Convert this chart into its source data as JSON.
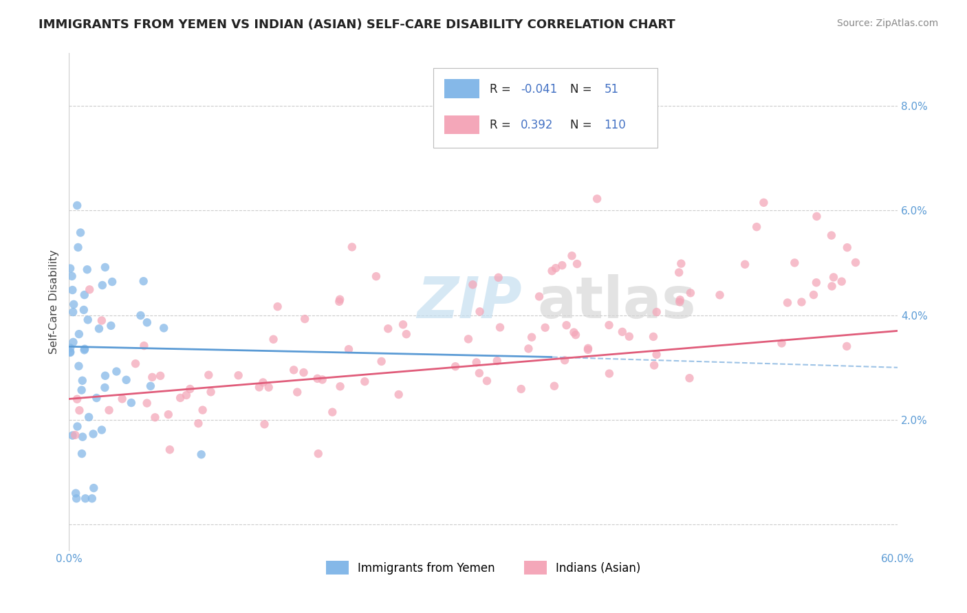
{
  "title": "IMMIGRANTS FROM YEMEN VS INDIAN (ASIAN) SELF-CARE DISABILITY CORRELATION CHART",
  "source": "Source: ZipAtlas.com",
  "ylabel": "Self-Care Disability",
  "legend_label1": "Immigrants from Yemen",
  "legend_label2": "Indians (Asian)",
  "r1": -0.041,
  "n1": 51,
  "r2": 0.392,
  "n2": 110,
  "color1": "#85b8e8",
  "color2": "#f4a7b9",
  "line_color1": "#5b9bd5",
  "line_color2": "#e05c7a",
  "dash_color": "#9dc3e6",
  "background": "#ffffff",
  "xlim": [
    0.0,
    0.6
  ],
  "ylim": [
    -0.005,
    0.09
  ],
  "yticks": [
    0.0,
    0.02,
    0.04,
    0.06,
    0.08
  ],
  "ytick_labels": [
    "",
    "2.0%",
    "4.0%",
    "6.0%",
    "8.0%"
  ],
  "blue_line_x": [
    0.0,
    0.35
  ],
  "blue_line_y": [
    0.034,
    0.032
  ],
  "pink_line_x": [
    0.0,
    0.6
  ],
  "pink_line_y": [
    0.024,
    0.037
  ],
  "dash_line_x": [
    0.35,
    0.6
  ],
  "dash_line_y": [
    0.032,
    0.03
  ]
}
